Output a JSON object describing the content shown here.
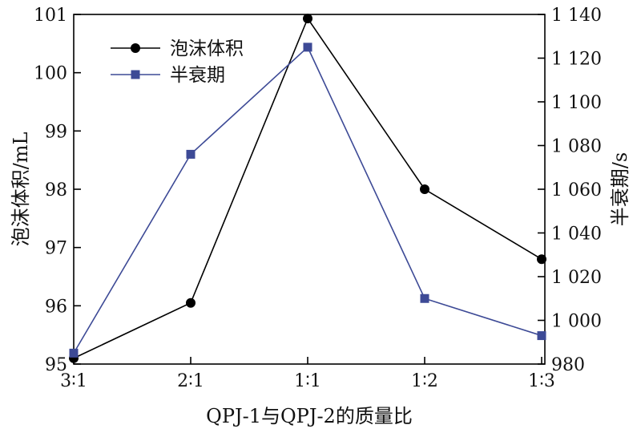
{
  "chart_data": {
    "type": "line",
    "categories": [
      "3∶1",
      "2∶1",
      "1∶1",
      "1∶2",
      "1∶3"
    ],
    "xlabel": "QPJ-1与QPJ-2的质量比",
    "ylabel_left": "泡沫体积/mL",
    "ylabel_right": "半衰期/s",
    "ylim_left": [
      95,
      101
    ],
    "ylim_right": [
      980,
      1140
    ],
    "yticks_left": [
      "95",
      "96",
      "97",
      "98",
      "99",
      "100",
      "101"
    ],
    "yticks_right": [
      "980",
      "1 000",
      "1 020",
      "1 040",
      "1 060",
      "1 080",
      "1 100",
      "1 120",
      "1 140"
    ],
    "legend_position": "top-left",
    "grid": false,
    "series": [
      {
        "name": "泡沫体积",
        "axis": "left",
        "marker": "circle",
        "color": "#000000",
        "values": [
          95.1,
          96.05,
          100.93,
          98.0,
          96.8
        ]
      },
      {
        "name": "半衰期",
        "axis": "right",
        "marker": "square",
        "color": "#3d4a96",
        "values": [
          985,
          1076,
          1125,
          1010,
          993
        ]
      }
    ]
  }
}
